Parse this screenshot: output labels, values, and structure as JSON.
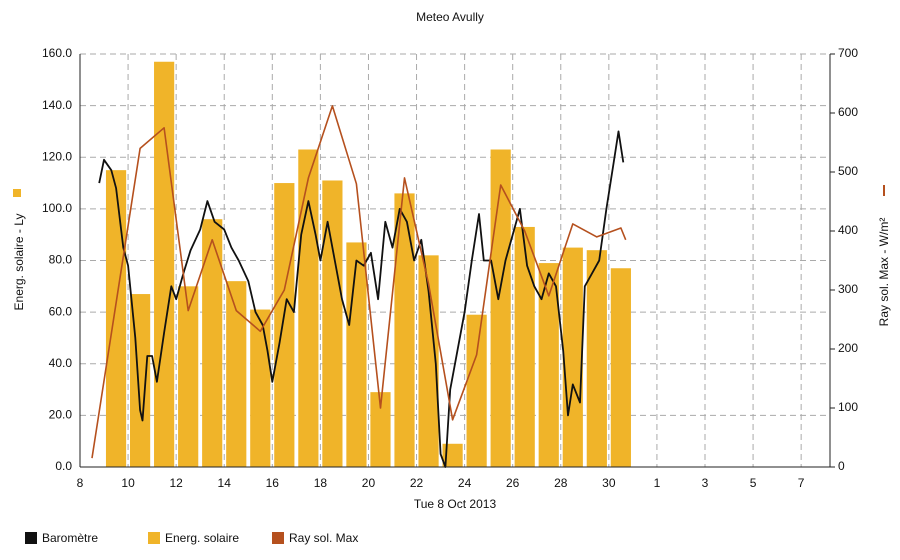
{
  "chart_data": {
    "type": "combo",
    "title": "Meteo  Avully",
    "x_label": "Tue 8 Oct 2013",
    "y_label": "Energ. solaire - Ly",
    "y2_label": "Ray sol. Max - W/m²",
    "xlim": [
      8,
      39.2
    ],
    "xticks": [
      8,
      10,
      12,
      14,
      16,
      18,
      20,
      22,
      24,
      26,
      28,
      30,
      {
        "value": 32,
        "label": "1"
      },
      {
        "value": 34,
        "label": "3"
      },
      {
        "value": 36,
        "label": "5"
      },
      {
        "value": 38,
        "label": "7"
      }
    ],
    "ylim": [
      0,
      160
    ],
    "yticks": [
      {
        "value": 0,
        "label": "0.0"
      },
      {
        "value": 20,
        "label": "20.0"
      },
      {
        "value": 40,
        "label": "40.0"
      },
      {
        "value": 60,
        "label": "60.0"
      },
      {
        "value": 80,
        "label": "80.0"
      },
      {
        "value": 100,
        "label": "100.0"
      },
      {
        "value": 120,
        "label": "120.0"
      },
      {
        "value": 140,
        "label": "140.0"
      },
      {
        "value": 160,
        "label": "160.0"
      }
    ],
    "y2lim": [
      0,
      700
    ],
    "y2ticks": [
      0,
      100,
      200,
      300,
      400,
      500,
      600,
      700
    ],
    "grid": true,
    "legend": "bottom",
    "series": [
      {
        "name": "Baromètre",
        "color": "#111111",
        "type": "line",
        "x": [
          8.8,
          9.0,
          9.3,
          9.5,
          9.8,
          10.0,
          10.3,
          10.5,
          10.6,
          10.8,
          11.0,
          11.2,
          11.5,
          11.8,
          12.0,
          12.3,
          12.6,
          13.0,
          13.3,
          13.6,
          14.0,
          14.3,
          14.6,
          15.0,
          15.3,
          15.6,
          15.8,
          16.0,
          16.3,
          16.6,
          16.9,
          17.2,
          17.5,
          17.8,
          18.0,
          18.3,
          18.6,
          18.9,
          19.2,
          19.5,
          19.8,
          20.1,
          20.4,
          20.7,
          21.0,
          21.3,
          21.6,
          21.9,
          22.2,
          22.5,
          22.8,
          23.0,
          23.2,
          23.4,
          23.7,
          24.0,
          24.3,
          24.6,
          24.8,
          25.1,
          25.4,
          25.7,
          26.0,
          26.3,
          26.6,
          26.9,
          27.2,
          27.5,
          27.8,
          28.1,
          28.3,
          28.5,
          28.8,
          29.0,
          29.3,
          29.6,
          29.9,
          30.2,
          30.4,
          30.6
        ],
        "values": [
          110,
          119,
          115,
          108,
          85,
          78,
          50,
          22,
          18,
          43,
          43,
          33,
          52,
          70,
          65,
          75,
          84,
          92,
          103,
          95,
          92,
          85,
          80,
          72,
          60,
          55,
          45,
          33,
          48,
          65,
          60,
          90,
          103,
          90,
          80,
          95,
          80,
          65,
          55,
          80,
          78,
          83,
          65,
          95,
          85,
          100,
          95,
          80,
          88,
          68,
          40,
          5,
          0,
          30,
          45,
          60,
          80,
          98,
          80,
          80,
          65,
          80,
          90,
          100,
          78,
          70,
          65,
          75,
          70,
          45,
          20,
          32,
          25,
          70,
          75,
          80,
          100,
          118,
          130,
          118
        ]
      },
      {
        "name": "Energ. solaire",
        "color": "#f0b429",
        "type": "bar",
        "x": [
          9.5,
          10.5,
          11.5,
          12.5,
          13.5,
          14.5,
          15.5,
          16.5,
          17.5,
          18.5,
          19.5,
          20.5,
          21.5,
          22.5,
          23.5,
          24.5,
          25.5,
          26.5,
          27.5,
          28.5,
          29.5,
          30.5
        ],
        "values": [
          115,
          67,
          157,
          70,
          96,
          72,
          61,
          110,
          123,
          111,
          87,
          29,
          106,
          82,
          9,
          59,
          123,
          93,
          79,
          85,
          84,
          77
        ]
      },
      {
        "name": "Ray sol. Max",
        "color": "#b5501e",
        "type": "line",
        "axis": "y2",
        "x": [
          8.5,
          10.5,
          11.5,
          12.5,
          13.5,
          14.5,
          15.5,
          16.5,
          17.5,
          18.5,
          19.5,
          20.5,
          21.5,
          22.5,
          23.5,
          24.5,
          25.5,
          26.5,
          27.5,
          28.5,
          29.5,
          30.5,
          30.7
        ],
        "values": [
          15,
          540,
          575,
          265,
          385,
          265,
          230,
          300,
          490,
          612,
          480,
          100,
          490,
          310,
          80,
          190,
          478,
          400,
          290,
          412,
          390,
          405,
          385
        ]
      }
    ]
  }
}
